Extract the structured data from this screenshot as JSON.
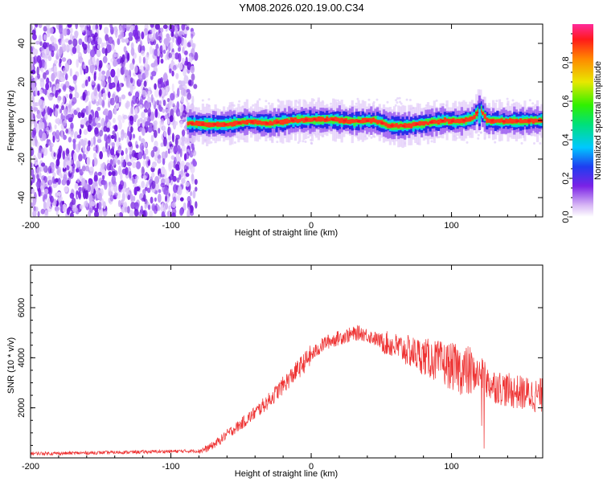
{
  "title": "YM08.2026.020.19.00.C34",
  "chart_data": [
    {
      "type": "heatmap",
      "name": "spectrogram",
      "xlabel": "Height of straight line (km)",
      "ylabel": "Frequency (Hz)",
      "xlim": [
        -200,
        165
      ],
      "ylim": [
        -50,
        50
      ],
      "xticks": [
        -200,
        -100,
        0,
        100
      ],
      "yticks": [
        -40,
        -20,
        0,
        20,
        40
      ],
      "colorbar": {
        "label": "Normalized spectral amplitude",
        "range": [
          0,
          1
        ],
        "ticks": [
          0.0,
          0.2,
          0.4,
          0.6,
          0.8
        ]
      },
      "noise_region_x": [
        -200,
        -82
      ],
      "ridge": [
        {
          "x": -88,
          "y": -1.5
        },
        {
          "x": -75,
          "y": -2
        },
        {
          "x": -60,
          "y": -2
        },
        {
          "x": -45,
          "y": -0.5
        },
        {
          "x": -30,
          "y": -1.5
        },
        {
          "x": -15,
          "y": 0
        },
        {
          "x": 0,
          "y": 0.5
        },
        {
          "x": 15,
          "y": 0.5
        },
        {
          "x": 30,
          "y": -0.5
        },
        {
          "x": 45,
          "y": 0
        },
        {
          "x": 55,
          "y": -2.5
        },
        {
          "x": 65,
          "y": -3
        },
        {
          "x": 75,
          "y": -2
        },
        {
          "x": 85,
          "y": -1
        },
        {
          "x": 95,
          "y": 0
        },
        {
          "x": 105,
          "y": -0.5
        },
        {
          "x": 115,
          "y": 1
        },
        {
          "x": 120,
          "y": 6
        },
        {
          "x": 125,
          "y": 0
        },
        {
          "x": 140,
          "y": -0.5
        },
        {
          "x": 165,
          "y": 0
        }
      ]
    },
    {
      "type": "line",
      "name": "snr",
      "xlabel": "Height of straight line (km)",
      "ylabel": "SNR (10 * v/v)",
      "xlim": [
        -200,
        165
      ],
      "ylim": [
        0,
        7700
      ],
      "xticks": [
        -200,
        -100,
        0,
        100
      ],
      "yticks": [
        2000,
        4000,
        6000
      ],
      "color": "#ee3333",
      "x": [
        -200,
        -180,
        -160,
        -140,
        -120,
        -100,
        -90,
        -80,
        -75,
        -70,
        -65,
        -60,
        -55,
        -50,
        -40,
        -30,
        -20,
        -10,
        0,
        10,
        20,
        30,
        35,
        40,
        50,
        60,
        70,
        80,
        90,
        100,
        110,
        115,
        120,
        123,
        125,
        130,
        140,
        150,
        160,
        165
      ],
      "y": [
        180,
        180,
        200,
        220,
        240,
        260,
        270,
        280,
        350,
        500,
        700,
        950,
        1150,
        1350,
        1800,
        2300,
        2900,
        3500,
        4100,
        4600,
        4800,
        4950,
        5000,
        4900,
        4650,
        4450,
        4250,
        4050,
        3850,
        3650,
        3450,
        3400,
        3300,
        3250,
        3000,
        2900,
        2700,
        2600,
        2500,
        2500
      ]
    }
  ]
}
